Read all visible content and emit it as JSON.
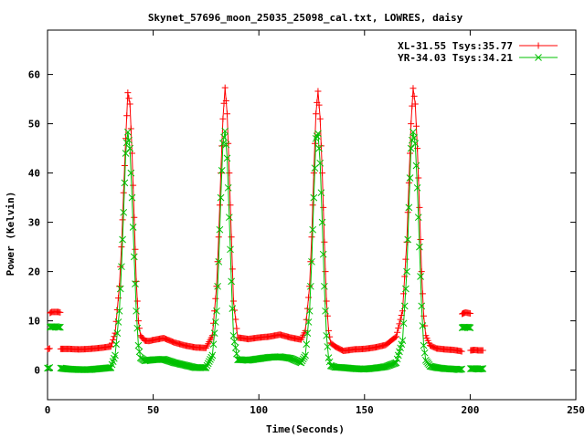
{
  "chart_data": {
    "type": "line",
    "title": "Skynet_57696_moon_25035_25098_cal.txt, LOWRES, daisy",
    "xlabel": "Time(Seconds)",
    "ylabel": "Power (Kelvin)",
    "xlim": [
      0,
      250
    ],
    "ylim": [
      -6,
      69
    ],
    "xticks": [
      0,
      50,
      100,
      150,
      200,
      250
    ],
    "yticks": [
      0,
      10,
      20,
      30,
      40,
      50,
      60
    ],
    "grid": false,
    "legend_position": "top-right",
    "series": [
      {
        "name": "XL-31.55 Tsys:35.77",
        "color": "#ff0000",
        "marker": "plus",
        "segments": [
          {
            "x": [
              0,
              0.5,
              1
            ],
            "y": [
              4.3,
              4.3,
              4.4
            ]
          },
          {
            "x": [
              1.2,
              2,
              3,
              4,
              5,
              6
            ],
            "y": [
              11.6,
              11.8,
              11.8,
              11.8,
              11.8,
              11.7
            ]
          },
          {
            "x": [
              6.2,
              10,
              15,
              20,
              25,
              30,
              32,
              34,
              35,
              36,
              37,
              38,
              39,
              40,
              41,
              42,
              43,
              44,
              46,
              48,
              50,
              55,
              60,
              65,
              70,
              75,
              78,
              80,
              81,
              82,
              83,
              84,
              85,
              86,
              87,
              88,
              90,
              92,
              95,
              100,
              105,
              110,
              115,
              120,
              122,
              124,
              125,
              126,
              127,
              128,
              129,
              130,
              131,
              132,
              133,
              134,
              136,
              140,
              145,
              150,
              155,
              160,
              165,
              168,
              170,
              171,
              172,
              173,
              174,
              175,
              176,
              177,
              178,
              179,
              181,
              184,
              188,
              192,
              195,
              196
            ],
            "y": [
              4.3,
              4.3,
              4.2,
              4.3,
              4.5,
              4.8,
              7.5,
              17,
              25,
              36,
              47,
              56.3,
              54,
              44,
              31,
              18,
              10,
              7,
              6,
              5.9,
              6.1,
              6.5,
              5.6,
              5,
              4.6,
              4.5,
              7,
              17,
              27,
              40,
              51,
              57.3,
              52,
              40,
              27,
              14,
              6.6,
              6.5,
              6.3,
              6.6,
              6.8,
              7.2,
              6.6,
              6.2,
              8,
              17,
              27,
              40,
              52,
              56.6,
              51,
              40,
              26,
              14,
              8,
              5.5,
              4.8,
              3.9,
              4.2,
              4.3,
              4.6,
              5.1,
              6.8,
              12,
              26,
              38,
              50,
              57.2,
              54,
              45,
              33,
              20,
              11,
              7,
              5,
              4.4,
              4.2,
              4.1,
              3.9,
              3.8
            ]
          },
          {
            "x": [
              196.2,
              197,
              198,
              199,
              200
            ],
            "y": [
              11.4,
              11.6,
              11.7,
              11.6,
              11.5
            ]
          },
          {
            "x": [
              200.2,
              202,
              204,
              206
            ],
            "y": [
              4.0,
              4.1,
              4.0,
              4.0
            ]
          }
        ]
      },
      {
        "name": "YR-34.03 Tsys:34.21",
        "color": "#00c000",
        "marker": "cross",
        "segments": [
          {
            "x": [
              0,
              0.5,
              1
            ],
            "y": [
              0.4,
              0.4,
              0.5
            ]
          },
          {
            "x": [
              1.2,
              2,
              3,
              4,
              5,
              6
            ],
            "y": [
              8.7,
              8.8,
              8.8,
              8.8,
              8.7,
              8.7
            ]
          },
          {
            "x": [
              6.2,
              10,
              15,
              20,
              25,
              30,
              32,
              34,
              35,
              36,
              37,
              38,
              39,
              40,
              41,
              42,
              43,
              44,
              46,
              48,
              50,
              55,
              60,
              65,
              70,
              75,
              78,
              80,
              81,
              82,
              83,
              84,
              85,
              86,
              87,
              88,
              90,
              92,
              95,
              100,
              105,
              110,
              115,
              120,
              122,
              124,
              125,
              126,
              127,
              128,
              129,
              130,
              131,
              132,
              133,
              134,
              136,
              140,
              145,
              150,
              155,
              160,
              165,
              168,
              170,
              171,
              172,
              173,
              174,
              175,
              176,
              177,
              178,
              179,
              181,
              184,
              188,
              192,
              195,
              196
            ],
            "y": [
              0.4,
              0.2,
              0.1,
              0.1,
              0.3,
              0.5,
              3,
              12,
              21,
              32,
              44,
              48.3,
              45,
              35,
              23,
              12,
              5,
              2.5,
              1.9,
              2.0,
              2.1,
              2.2,
              1.5,
              1.0,
              0.5,
              0.5,
              3,
              12,
              22,
              35,
              46,
              48.5,
              43,
              31,
              18,
              7,
              2.1,
              2.1,
              2.0,
              2.3,
              2.6,
              2.7,
              2.4,
              1.5,
              3,
              12,
              22,
              35,
              47,
              48,
              42,
              30,
              17,
              7,
              2.5,
              0.9,
              0.6,
              0.5,
              0.3,
              0.2,
              0.4,
              0.7,
              1.5,
              6,
              20,
              33,
              45,
              48.3,
              46,
              37,
              25,
              13,
              5,
              2,
              0.8,
              0.5,
              0.3,
              0.2,
              0.1,
              0.2
            ]
          },
          {
            "x": [
              196.2,
              197,
              198,
              199,
              200
            ],
            "y": [
              8.6,
              8.7,
              8.7,
              8.7,
              8.6
            ]
          },
          {
            "x": [
              200.2,
              202,
              204,
              206
            ],
            "y": [
              0.3,
              0.3,
              0.2,
              0.3
            ]
          }
        ]
      }
    ]
  }
}
